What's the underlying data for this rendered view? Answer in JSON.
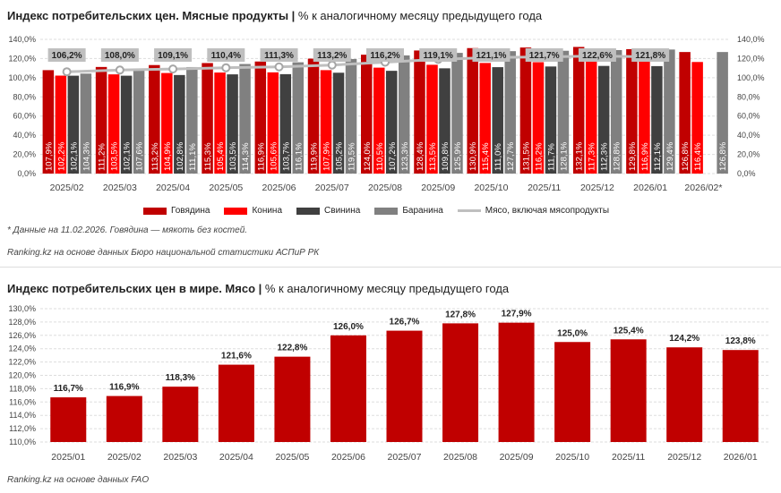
{
  "chart_data": [
    {
      "type": "bar",
      "title": "Индекс потребительских цен. Мясные продукты",
      "subtitle": "% к аналогичному месяцу предыдущего года",
      "categories": [
        "2025/02",
        "2025/03",
        "2025/04",
        "2025/05",
        "2025/06",
        "2025/07",
        "2025/08",
        "2025/09",
        "2025/10",
        "2025/11",
        "2025/12",
        "2026/01",
        "2026/02*"
      ],
      "series": [
        {
          "name": "Говядина",
          "color": "#C00000",
          "values": [
            107.9,
            111.2,
            113.2,
            115.3,
            116.9,
            119.9,
            124.0,
            128.4,
            130.9,
            131.5,
            132.1,
            129.8,
            126.8
          ]
        },
        {
          "name": "Конина",
          "color": "#FF0000",
          "values": [
            102.2,
            103.5,
            104.9,
            105.4,
            105.6,
            107.9,
            110.5,
            113.5,
            115.4,
            116.2,
            117.3,
            116.9,
            116.4
          ]
        },
        {
          "name": "Свинина",
          "color": "#404040",
          "values": [
            102.1,
            102.1,
            102.8,
            103.5,
            103.7,
            105.2,
            107.2,
            109.8,
            111.0,
            111.7,
            112.3,
            112.1,
            null
          ]
        },
        {
          "name": "Баранина",
          "color": "#808080",
          "values": [
            104.3,
            107.6,
            111.1,
            114.3,
            116.1,
            119.5,
            123.3,
            125.9,
            127.7,
            128.1,
            128.8,
            129.4,
            126.8
          ]
        },
        {
          "name": "Мясо, включая мясопродукты",
          "type": "line",
          "color": "#BFBFBF",
          "values": [
            106.2,
            108.0,
            109.1,
            110.4,
            111.3,
            113.2,
            116.2,
            119.1,
            121.1,
            121.7,
            122.6,
            121.8,
            null
          ]
        }
      ],
      "ylim": [
        0,
        140
      ],
      "yticks": [
        "0,0%",
        "20,0%",
        "40,0%",
        "60,0%",
        "80,0%",
        "100,0%",
        "120,0%",
        "140,0%"
      ],
      "grid": true,
      "legend": "bottom",
      "notes": [
        "* Данные на 11.02.2026. Говядина — мякоть без костей.",
        "Ranking.kz на основе данных Бюро национальной статистики АСПиР РК"
      ]
    },
    {
      "type": "bar",
      "title": "Индекс потребительских цен в мире. Мясо",
      "subtitle": "% к аналогичному месяцу предыдущего года",
      "categories": [
        "2025/01",
        "2025/02",
        "2025/03",
        "2025/04",
        "2025/05",
        "2025/06",
        "2025/07",
        "2025/08",
        "2025/09",
        "2025/10",
        "2025/11",
        "2025/12",
        "2026/01"
      ],
      "values": [
        116.7,
        116.9,
        118.3,
        121.6,
        122.8,
        126.0,
        126.7,
        127.8,
        127.9,
        125.0,
        125.4,
        124.2,
        123.8
      ],
      "color": "#C00000",
      "ylim": [
        110,
        130
      ],
      "yticks": [
        "110,0%",
        "112,0%",
        "114,0%",
        "116,0%",
        "118,0%",
        "120,0%",
        "122,0%",
        "124,0%",
        "126,0%",
        "128,0%",
        "130,0%"
      ],
      "grid": true,
      "notes": [
        "Ranking.kz на основе данных FAO"
      ]
    }
  ]
}
